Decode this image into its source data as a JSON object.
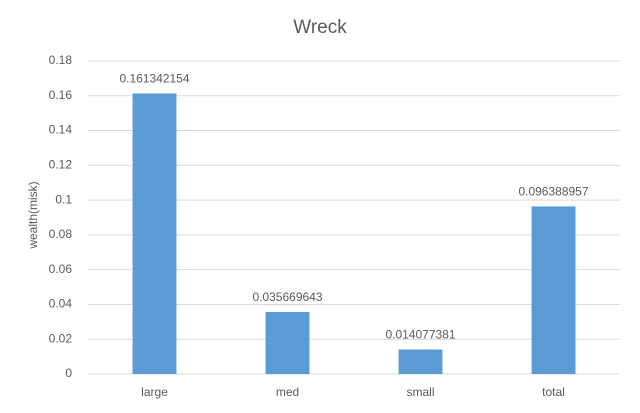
{
  "chart_data": {
    "type": "bar",
    "title": "Wreck",
    "y_label": "wealth(misk)",
    "categories": [
      "large",
      "med",
      "small",
      "total"
    ],
    "values": [
      0.161342154,
      0.035669643,
      0.014077381,
      0.096388957
    ],
    "color": "#5b9bd5",
    "ylim": [
      0,
      0.18
    ],
    "yticks": [
      0,
      0.02,
      0.04,
      0.06,
      0.08,
      0.1,
      0.12,
      0.14,
      0.16,
      0.18
    ],
    "grid": true
  }
}
